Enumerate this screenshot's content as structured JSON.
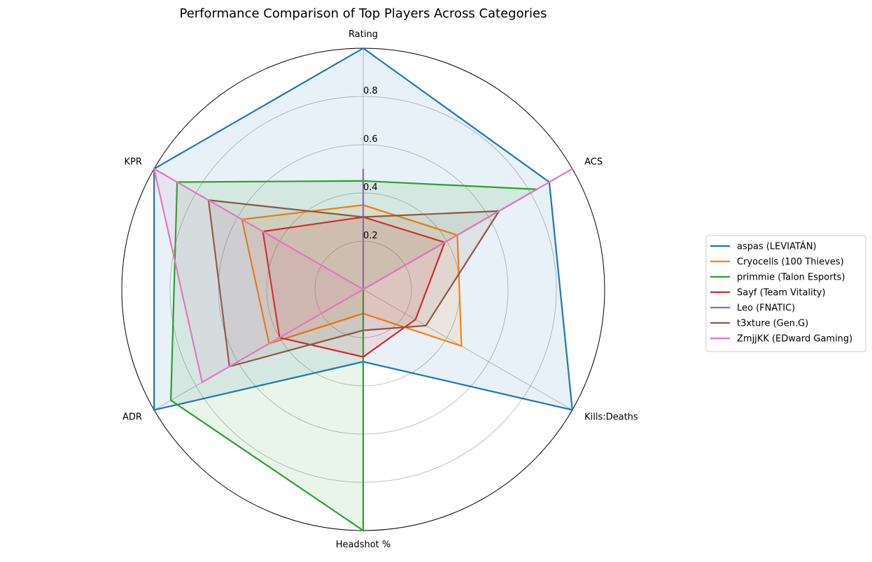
{
  "chart_data": {
    "type": "radar",
    "title": "Performance Comparison of Top Players Across Categories",
    "categories": [
      "Rating",
      "ACS",
      "Kills:Deaths",
      "Headshot %",
      "ADR",
      "KPR"
    ],
    "radial_ticks": [
      "0.2",
      "0.4",
      "0.6",
      "0.8"
    ],
    "rlim": [
      0,
      1
    ],
    "grid": true,
    "legend_position": "right",
    "series": [
      {
        "name": "aspas (LEVIATÁN)",
        "color": "#1f77b4",
        "values": [
          1.0,
          0.89,
          1.0,
          0.3,
          1.0,
          1.0
        ]
      },
      {
        "name": "Cryocells (100 Thieves)",
        "color": "#ff7f0e",
        "values": [
          0.35,
          0.45,
          0.47,
          0.1,
          0.45,
          0.58
        ]
      },
      {
        "name": "primmie (Talon Esports)",
        "color": "#2ca02c",
        "values": [
          0.45,
          0.83,
          0.0,
          1.0,
          0.92,
          0.89
        ]
      },
      {
        "name": "Sayf (Team Vitality)",
        "color": "#d62728",
        "values": [
          0.3,
          0.39,
          0.25,
          0.28,
          0.4,
          0.48
        ]
      },
      {
        "name": "Leo (FNATIC)",
        "color": "#9467bd",
        "values": [
          0.5,
          0.0,
          0.0,
          0.0,
          0.0,
          0.0
        ]
      },
      {
        "name": "t3xture (Gen.G)",
        "color": "#8c564b",
        "values": [
          0.3,
          0.65,
          0.3,
          0.17,
          0.64,
          0.74
        ]
      },
      {
        "name": "ZmjjKK (EDward Gaming)",
        "color": "#e377c2",
        "values": [
          0.0,
          1.0,
          0.0,
          0.0,
          0.77,
          1.0
        ]
      }
    ]
  }
}
